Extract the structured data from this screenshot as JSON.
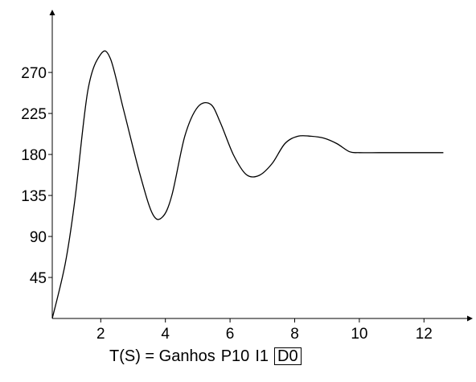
{
  "chart_data": {
    "type": "line",
    "title": "",
    "xlabel": "",
    "ylabel": "",
    "xlim": [
      0.5,
      13.2
    ],
    "ylim": [
      0,
      314
    ],
    "x_ticks": [
      2,
      4,
      6,
      8,
      10,
      12
    ],
    "y_ticks": [
      45,
      90,
      135,
      180,
      225,
      270
    ],
    "grid": false,
    "series": [
      {
        "x": [
          0.5,
          0.9,
          1.2,
          1.6,
          2.0,
          2.3,
          2.7,
          3.2,
          3.6,
          3.9,
          4.2,
          4.6,
          5.0,
          5.4,
          5.7,
          6.1,
          6.5,
          6.9,
          7.3,
          7.7,
          8.1,
          8.5,
          8.9,
          9.3,
          9.7,
          10.0,
          10.6,
          11.2,
          11.8,
          12.6
        ],
        "y": [
          0,
          60,
          130,
          250,
          290,
          285,
          230,
          160,
          115,
          111,
          135,
          200,
          232,
          235,
          215,
          180,
          158,
          157,
          170,
          192,
          200,
          200,
          198,
          192,
          183,
          182,
          182,
          182,
          182,
          182
        ]
      }
    ]
  },
  "caption": {
    "formula": "T(S) = Ganhos",
    "p": "P10",
    "i": "I1",
    "d": "D0"
  }
}
